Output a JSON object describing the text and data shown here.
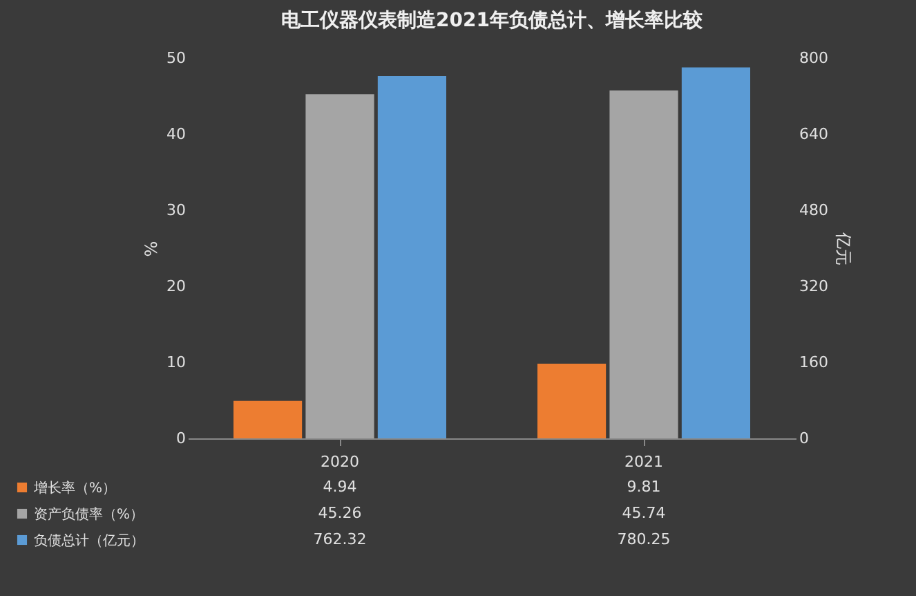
{
  "chart_data": {
    "type": "bar",
    "title": "电工仪器仪表制造2021年负债总计、增长率比较",
    "categories": [
      "2020",
      "2021"
    ],
    "series": [
      {
        "name": "增长率（%）",
        "color": "#ed7d31",
        "values": [
          4.94,
          9.81
        ]
      },
      {
        "name": "资产负债率（%）",
        "color": "#a5a5a5",
        "values": [
          45.26,
          45.74
        ]
      },
      {
        "name": "负债总计（亿元）",
        "color": "#5b9bd5",
        "values": [
          762.32,
          780.25
        ],
        "axis": "y2"
      }
    ],
    "ylabel": "%",
    "y2label": "亿元",
    "ylim": [
      0,
      50
    ],
    "yticks": [
      0,
      10,
      20,
      30,
      40,
      50
    ],
    "y2lim": [
      0,
      800
    ],
    "y2ticks": [
      0,
      160,
      320,
      480,
      640,
      800
    ],
    "data_labels": true,
    "legend": "bottom left"
  }
}
